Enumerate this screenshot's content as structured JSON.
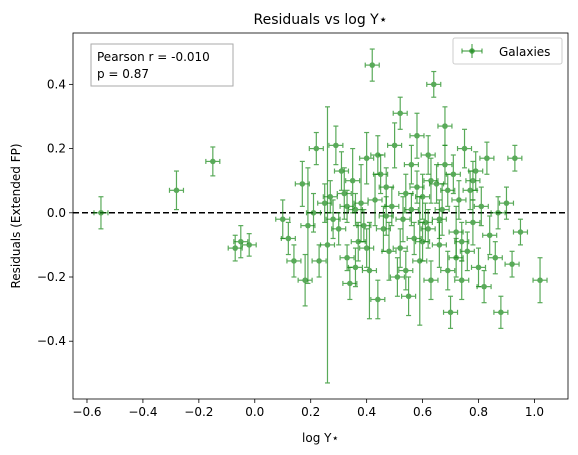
{
  "chart_data": {
    "type": "scatter",
    "title": "Residuals vs log Y⋆",
    "xlabel": "log Y⋆",
    "ylabel": "Residuals (Extended FP)",
    "xlim": [
      -0.65,
      1.12
    ],
    "ylim": [
      -0.58,
      0.56
    ],
    "xticks": [
      -0.6,
      -0.4,
      -0.2,
      0.0,
      0.2,
      0.4,
      0.6,
      0.8,
      1.0
    ],
    "xtick_labels": [
      "−0.6",
      "−0.4",
      "−0.2",
      "0.0",
      "0.2",
      "0.4",
      "0.6",
      "0.8",
      "1.0"
    ],
    "yticks": [
      -0.4,
      -0.2,
      0.0,
      0.2,
      0.4
    ],
    "ytick_labels": [
      "−0.4",
      "−0.2",
      "0.0",
      "0.2",
      "0.4"
    ],
    "grid": false,
    "reference_line": {
      "y": 0.0,
      "style": "dashed",
      "color": "#000000"
    },
    "legend": {
      "position": "top-right",
      "entries": [
        "Galaxies"
      ]
    },
    "annotation": {
      "lines": [
        "Pearson r = -0.010",
        "p = 0.87"
      ],
      "position": "top-left"
    },
    "series": [
      {
        "name": "Galaxies",
        "color": "#1a8a1a",
        "x_error": 0.025,
        "points": [
          {
            "x": -0.55,
            "y": 0.0,
            "yerr": 0.05
          },
          {
            "x": -0.28,
            "y": 0.07,
            "yerr": 0.06
          },
          {
            "x": -0.15,
            "y": 0.16,
            "yerr": 0.045
          },
          {
            "x": -0.07,
            "y": -0.11,
            "yerr": 0.04
          },
          {
            "x": -0.05,
            "y": -0.09,
            "yerr": 0.05
          },
          {
            "x": -0.02,
            "y": -0.1,
            "yerr": 0.035
          },
          {
            "x": 0.1,
            "y": -0.02,
            "yerr": 0.06
          },
          {
            "x": 0.12,
            "y": -0.08,
            "yerr": 0.05
          },
          {
            "x": 0.14,
            "y": -0.15,
            "yerr": 0.05
          },
          {
            "x": 0.17,
            "y": 0.09,
            "yerr": 0.07
          },
          {
            "x": 0.18,
            "y": -0.21,
            "yerr": 0.08
          },
          {
            "x": 0.19,
            "y": -0.04,
            "yerr": 0.18
          },
          {
            "x": 0.21,
            "y": 0.0,
            "yerr": 0.06
          },
          {
            "x": 0.22,
            "y": 0.2,
            "yerr": 0.05
          },
          {
            "x": 0.23,
            "y": -0.15,
            "yerr": 0.05
          },
          {
            "x": 0.25,
            "y": 0.03,
            "yerr": 0.06
          },
          {
            "x": 0.26,
            "y": -0.1,
            "yerr": 0.43
          },
          {
            "x": 0.27,
            "y": 0.05,
            "yerr": 0.05
          },
          {
            "x": 0.28,
            "y": -0.02,
            "yerr": 0.06
          },
          {
            "x": 0.29,
            "y": 0.21,
            "yerr": 0.06
          },
          {
            "x": 0.3,
            "y": -0.05,
            "yerr": 0.05
          },
          {
            "x": 0.31,
            "y": 0.13,
            "yerr": 0.06
          },
          {
            "x": 0.32,
            "y": 0.06,
            "yerr": 0.08
          },
          {
            "x": 0.33,
            "y": -0.14,
            "yerr": 0.04
          },
          {
            "x": 0.34,
            "y": -0.22,
            "yerr": 0.05
          },
          {
            "x": 0.35,
            "y": 0.1,
            "yerr": 0.1
          },
          {
            "x": 0.36,
            "y": 0.01,
            "yerr": 0.05
          },
          {
            "x": 0.37,
            "y": -0.09,
            "yerr": 0.06
          },
          {
            "x": 0.38,
            "y": 0.03,
            "yerr": 0.12
          },
          {
            "x": 0.39,
            "y": -0.04,
            "yerr": 0.05
          },
          {
            "x": 0.4,
            "y": 0.17,
            "yerr": 0.08
          },
          {
            "x": 0.41,
            "y": -0.18,
            "yerr": 0.15
          },
          {
            "x": 0.42,
            "y": 0.46,
            "yerr": 0.05
          },
          {
            "x": 0.43,
            "y": 0.04,
            "yerr": 0.08
          },
          {
            "x": 0.44,
            "y": -0.27,
            "yerr": 0.06
          },
          {
            "x": 0.45,
            "y": 0.12,
            "yerr": 0.06
          },
          {
            "x": 0.46,
            "y": -0.05,
            "yerr": 0.07
          },
          {
            "x": 0.47,
            "y": 0.08,
            "yerr": 0.06
          },
          {
            "x": 0.48,
            "y": -0.12,
            "yerr": 0.09
          },
          {
            "x": 0.49,
            "y": 0.02,
            "yerr": 0.06
          },
          {
            "x": 0.5,
            "y": 0.21,
            "yerr": 0.07
          },
          {
            "x": 0.51,
            "y": -0.2,
            "yerr": 0.06
          },
          {
            "x": 0.52,
            "y": 0.31,
            "yerr": 0.05
          },
          {
            "x": 0.53,
            "y": -0.02,
            "yerr": 0.07
          },
          {
            "x": 0.54,
            "y": 0.06,
            "yerr": 0.06
          },
          {
            "x": 0.55,
            "y": -0.26,
            "yerr": 0.06
          },
          {
            "x": 0.56,
            "y": 0.15,
            "yerr": 0.06
          },
          {
            "x": 0.57,
            "y": -0.08,
            "yerr": 0.05
          },
          {
            "x": 0.58,
            "y": 0.24,
            "yerr": 0.07
          },
          {
            "x": 0.59,
            "y": -0.15,
            "yerr": 0.2
          },
          {
            "x": 0.6,
            "y": 0.05,
            "yerr": 0.07
          },
          {
            "x": 0.61,
            "y": -0.03,
            "yerr": 0.06
          },
          {
            "x": 0.62,
            "y": 0.18,
            "yerr": 0.06
          },
          {
            "x": 0.63,
            "y": -0.21,
            "yerr": 0.06
          },
          {
            "x": 0.64,
            "y": 0.4,
            "yerr": 0.04
          },
          {
            "x": 0.65,
            "y": 0.09,
            "yerr": 0.06
          },
          {
            "x": 0.66,
            "y": -0.1,
            "yerr": 0.07
          },
          {
            "x": 0.67,
            "y": 0.01,
            "yerr": 0.08
          },
          {
            "x": 0.68,
            "y": 0.27,
            "yerr": 0.06
          },
          {
            "x": 0.69,
            "y": -0.18,
            "yerr": 0.06
          },
          {
            "x": 0.7,
            "y": -0.31,
            "yerr": 0.05
          },
          {
            "x": 0.71,
            "y": 0.12,
            "yerr": 0.06
          },
          {
            "x": 0.72,
            "y": -0.06,
            "yerr": 0.08
          },
          {
            "x": 0.73,
            "y": 0.04,
            "yerr": 0.06
          },
          {
            "x": 0.74,
            "y": -0.21,
            "yerr": 0.06
          },
          {
            "x": 0.75,
            "y": 0.2,
            "yerr": 0.06
          },
          {
            "x": 0.76,
            "y": -0.12,
            "yerr": 0.06
          },
          {
            "x": 0.77,
            "y": 0.07,
            "yerr": 0.06
          },
          {
            "x": 0.78,
            "y": -0.03,
            "yerr": 0.07
          },
          {
            "x": 0.79,
            "y": 0.13,
            "yerr": 0.06
          },
          {
            "x": 0.8,
            "y": -0.17,
            "yerr": 0.06
          },
          {
            "x": 0.81,
            "y": 0.02,
            "yerr": 0.06
          },
          {
            "x": 0.82,
            "y": -0.23,
            "yerr": 0.05
          },
          {
            "x": 0.83,
            "y": 0.17,
            "yerr": 0.05
          },
          {
            "x": 0.84,
            "y": -0.07,
            "yerr": 0.06
          },
          {
            "x": 0.86,
            "y": -0.14,
            "yerr": 0.05
          },
          {
            "x": 0.87,
            "y": 0.0,
            "yerr": 0.05
          },
          {
            "x": 0.88,
            "y": -0.31,
            "yerr": 0.05
          },
          {
            "x": 0.9,
            "y": 0.03,
            "yerr": 0.05
          },
          {
            "x": 0.92,
            "y": -0.16,
            "yerr": 0.04
          },
          {
            "x": 0.93,
            "y": 0.17,
            "yerr": 0.04
          },
          {
            "x": 0.95,
            "y": -0.06,
            "yerr": 0.04
          },
          {
            "x": 1.02,
            "y": -0.21,
            "yerr": 0.07
          },
          {
            "x": 0.52,
            "y": -0.11,
            "yerr": 0.06
          },
          {
            "x": 0.56,
            "y": 0.01,
            "yerr": 0.05
          },
          {
            "x": 0.6,
            "y": -0.09,
            "yerr": 0.06
          },
          {
            "x": 0.63,
            "y": 0.1,
            "yerr": 0.07
          },
          {
            "x": 0.66,
            "y": -0.02,
            "yerr": 0.06
          },
          {
            "x": 0.69,
            "y": 0.07,
            "yerr": 0.05
          },
          {
            "x": 0.72,
            "y": -0.14,
            "yerr": 0.06
          },
          {
            "x": 0.58,
            "y": 0.08,
            "yerr": 0.05
          },
          {
            "x": 0.47,
            "y": -0.01,
            "yerr": 0.06
          },
          {
            "x": 0.44,
            "y": 0.18,
            "yerr": 0.06
          },
          {
            "x": 0.54,
            "y": -0.18,
            "yerr": 0.06
          },
          {
            "x": 0.62,
            "y": -0.05,
            "yerr": 0.06
          },
          {
            "x": 0.68,
            "y": 0.15,
            "yerr": 0.06
          },
          {
            "x": 0.74,
            "y": -0.09,
            "yerr": 0.06
          },
          {
            "x": 0.78,
            "y": 0.1,
            "yerr": 0.06
          },
          {
            "x": 0.4,
            "y": -0.11,
            "yerr": 0.06
          },
          {
            "x": 0.36,
            "y": -0.17,
            "yerr": 0.06
          },
          {
            "x": 0.33,
            "y": 0.02,
            "yerr": 0.05
          }
        ]
      }
    ]
  }
}
